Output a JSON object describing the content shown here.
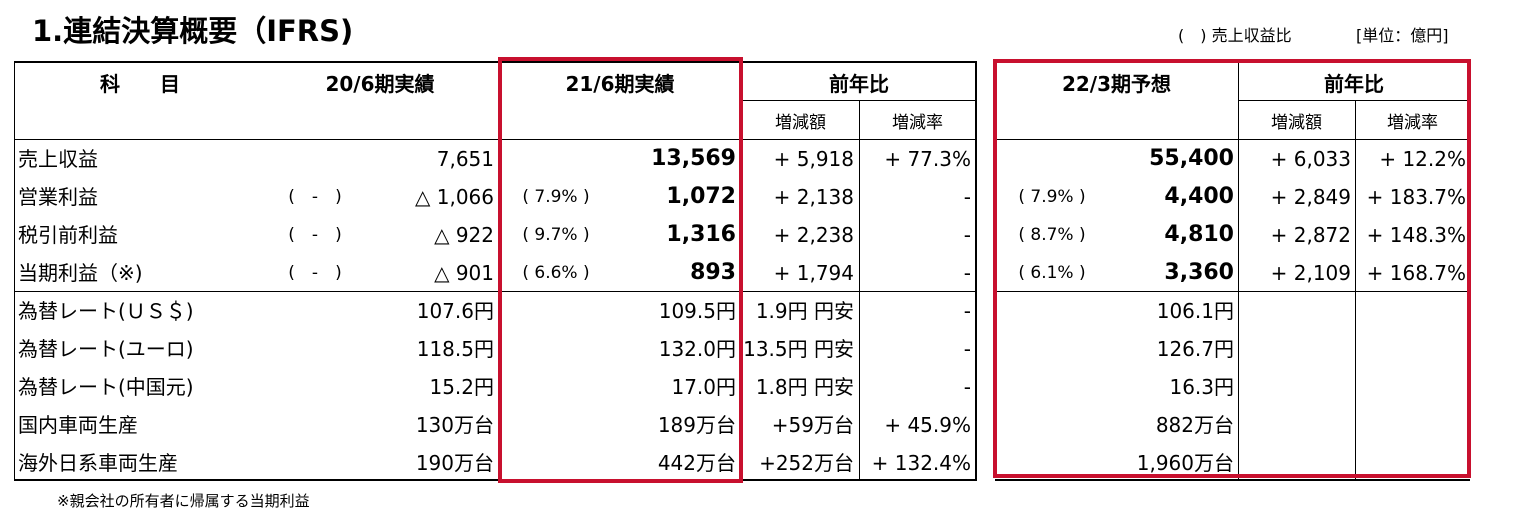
{
  "title": "1.連結決算概要（IFRS)",
  "unit_note": "(　) 売上収益比",
  "unit": "[単位：億円]",
  "footnote": "※親会社の所有者に帰属する当期利益",
  "headers": {
    "item": "科　　目",
    "prev": "20/6期実績",
    "curr": "21/6期実績",
    "yoy": "前年比",
    "forecast": "22/3期予想",
    "yoy2": "前年比",
    "diff": "増減額",
    "rate": "増減率",
    "diff2": "増減額",
    "rate2": "増減率"
  },
  "rows": [
    {
      "label": "売上収益",
      "prev_pct": "",
      "prev": "7,651",
      "curr_pct": "",
      "curr": "13,569",
      "diff": "+ 5,918",
      "rate": "+ 77.3%",
      "fc_pct": "",
      "fc": "55,400",
      "fc_diff": "+ 6,033",
      "fc_rate": "+ 12.2%"
    },
    {
      "label": "営業利益",
      "prev_pct": "(　-　)",
      "prev": "△ 1,066",
      "curr_pct": "( 7.9% )",
      "curr": "1,072",
      "diff": "+ 2,138",
      "rate": "-",
      "fc_pct": "( 7.9% )",
      "fc": "4,400",
      "fc_diff": "+ 2,849",
      "fc_rate": "+ 183.7%"
    },
    {
      "label": "税引前利益",
      "prev_pct": "(　-　)",
      "prev": "△ 922",
      "curr_pct": "( 9.7% )",
      "curr": "1,316",
      "diff": "+ 2,238",
      "rate": "-",
      "fc_pct": "( 8.7% )",
      "fc": "4,810",
      "fc_diff": "+ 2,872",
      "fc_rate": "+ 148.3%"
    },
    {
      "label": "当期利益（※)",
      "prev_pct": "(　-　)",
      "prev": "△ 901",
      "curr_pct": "( 6.6% )",
      "curr": "893",
      "diff": "+ 1,794",
      "rate": "-",
      "fc_pct": "( 6.1% )",
      "fc": "3,360",
      "fc_diff": "+ 2,109",
      "fc_rate": "+ 168.7%"
    },
    {
      "label": "為替レート(ＵＳ＄)",
      "prev_pct": "",
      "prev": "107.6円",
      "curr_pct": "",
      "curr": "109.5円",
      "diff": "1.9円 円安",
      "rate": "-",
      "fc_pct": "",
      "fc": "106.1円",
      "fc_diff": "",
      "fc_rate": ""
    },
    {
      "label": "為替レート(ユーロ)",
      "prev_pct": "",
      "prev": "118.5円",
      "curr_pct": "",
      "curr": "132.0円",
      "diff": "13.5円 円安",
      "rate": "-",
      "fc_pct": "",
      "fc": "126.7円",
      "fc_diff": "",
      "fc_rate": ""
    },
    {
      "label": "為替レート(中国元)",
      "prev_pct": "",
      "prev": "15.2円",
      "curr_pct": "",
      "curr": "17.0円",
      "diff": "1.8円 円安",
      "rate": "-",
      "fc_pct": "",
      "fc": "16.3円",
      "fc_diff": "",
      "fc_rate": ""
    },
    {
      "label": "国内車両生産",
      "prev_pct": "",
      "prev": "130万台",
      "curr_pct": "",
      "curr": "189万台",
      "diff": "+59万台",
      "rate": "+ 45.9%",
      "fc_pct": "",
      "fc": "882万台",
      "fc_diff": "",
      "fc_rate": ""
    },
    {
      "label": "海外日系車両生産",
      "prev_pct": "",
      "prev": "190万台",
      "curr_pct": "",
      "curr": "442万台",
      "diff": "+252万台",
      "rate": "+ 132.4%",
      "fc_pct": "",
      "fc": "1,960万台",
      "fc_diff": "",
      "fc_rate": ""
    }
  ],
  "colors": {
    "highlight_border": "#c8102e"
  }
}
